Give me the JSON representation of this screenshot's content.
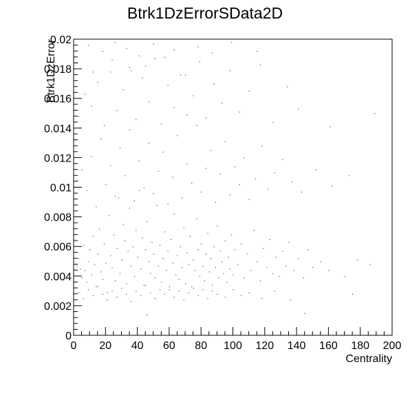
{
  "chart_data": {
    "type": "scatter",
    "title": "Btrk1DzErrorSData2D",
    "xlabel": "Centrality",
    "ylabel": "Btrk1DzError",
    "xlim": [
      0,
      200
    ],
    "ylim": [
      0,
      0.02
    ],
    "x_ticks": [
      "0",
      "20",
      "40",
      "60",
      "80",
      "100",
      "120",
      "140",
      "160",
      "180",
      "200"
    ],
    "y_ticks": [
      "0",
      "0.002",
      "0.004",
      "0.006",
      "0.008",
      "0.01",
      "0.012",
      "0.014",
      "0.016",
      "0.018",
      "0.02"
    ],
    "grid": false,
    "legend": "none",
    "colors": {
      "marker": "#000000",
      "frame": "#000000",
      "background": "#ffffff"
    },
    "series": [
      {
        "points": [
          [
            2,
            0.0047
          ],
          [
            3,
            0.0052
          ],
          [
            4,
            0.0045
          ],
          [
            5,
            0.0039
          ],
          [
            6,
            0.0061
          ],
          [
            7,
            0.0044
          ],
          [
            8,
            0.0036
          ],
          [
            9,
            0.005
          ],
          [
            10,
            0.0058
          ],
          [
            11,
            0.0041
          ],
          [
            12,
            0.0067
          ],
          [
            13,
            0.0048
          ],
          [
            14,
            0.0033
          ],
          [
            15,
            0.0055
          ],
          [
            16,
            0.0072
          ],
          [
            17,
            0.0043
          ],
          [
            18,
            0.0038
          ],
          [
            19,
            0.0062
          ],
          [
            20,
            0.0049
          ],
          [
            21,
            0.0029
          ],
          [
            22,
            0.0081
          ],
          [
            23,
            0.0054
          ],
          [
            24,
            0.0046
          ],
          [
            25,
            0.0068
          ],
          [
            26,
            0.0037
          ],
          [
            27,
            0.0059
          ],
          [
            28,
            0.0093
          ],
          [
            29,
            0.0042
          ],
          [
            30,
            0.0051
          ],
          [
            31,
            0.0075
          ],
          [
            32,
            0.0064
          ],
          [
            33,
            0.0035
          ],
          [
            34,
            0.0057
          ],
          [
            35,
            0.0086
          ],
          [
            36,
            0.0047
          ],
          [
            37,
            0.006
          ],
          [
            38,
            0.004
          ],
          [
            39,
            0.0071
          ],
          [
            40,
            0.0053
          ],
          [
            41,
            0.0098
          ],
          [
            42,
            0.0045
          ],
          [
            43,
            0.0066
          ],
          [
            44,
            0.0034
          ],
          [
            45,
            0.0058
          ],
          [
            46,
            0.0077
          ],
          [
            47,
            0.005
          ],
          [
            48,
            0.0042
          ],
          [
            49,
            0.0063
          ],
          [
            50,
            0.0055
          ],
          [
            51,
            0.0039
          ],
          [
            52,
            0.0088
          ],
          [
            53,
            0.0047
          ],
          [
            54,
            0.0061
          ],
          [
            55,
            0.0036
          ],
          [
            56,
            0.0052
          ],
          [
            57,
            0.007
          ],
          [
            58,
            0.0044
          ],
          [
            59,
            0.0057
          ],
          [
            60,
            0.0031
          ],
          [
            61,
            0.0065
          ],
          [
            62,
            0.0049
          ],
          [
            63,
            0.0082
          ],
          [
            64,
            0.0041
          ],
          [
            65,
            0.0054
          ],
          [
            66,
            0.0038
          ],
          [
            67,
            0.006
          ],
          [
            68,
            0.0046
          ],
          [
            69,
            0.0073
          ],
          [
            70,
            0.0035
          ],
          [
            71,
            0.0056
          ],
          [
            72,
            0.0048
          ],
          [
            73,
            0.0067
          ],
          [
            74,
            0.0033
          ],
          [
            75,
            0.0051
          ],
          [
            76,
            0.0044
          ],
          [
            77,
            0.0079
          ],
          [
            78,
            0.0058
          ],
          [
            79,
            0.004
          ],
          [
            80,
            0.0062
          ],
          [
            81,
            0.0047
          ],
          [
            82,
            0.0037
          ],
          [
            83,
            0.0055
          ],
          [
            84,
            0.0069
          ],
          [
            85,
            0.0043
          ],
          [
            86,
            0.0052
          ],
          [
            87,
            0.0034
          ],
          [
            88,
            0.006
          ],
          [
            89,
            0.0046
          ],
          [
            90,
            0.0074
          ],
          [
            91,
            0.0039
          ],
          [
            92,
            0.0057
          ],
          [
            93,
            0.005
          ],
          [
            94,
            0.0042
          ],
          [
            95,
            0.0064
          ],
          [
            96,
            0.0036
          ],
          [
            97,
            0.0053
          ],
          [
            98,
            0.0045
          ],
          [
            99,
            0.0068
          ],
          [
            100,
            0.0041
          ],
          [
            101,
            0.0058
          ],
          [
            103,
            0.0048
          ],
          [
            105,
            0.0062
          ],
          [
            107,
            0.0039
          ],
          [
            109,
            0.0055
          ],
          [
            111,
            0.0044
          ],
          [
            113,
            0.0071
          ],
          [
            115,
            0.005
          ],
          [
            117,
            0.0037
          ],
          [
            119,
            0.0059
          ],
          [
            121,
            0.0046
          ],
          [
            123,
            0.0065
          ],
          [
            125,
            0.0042
          ],
          [
            127,
            0.0053
          ],
          [
            129,
            0.004
          ],
          [
            131,
            0.0057
          ],
          [
            133,
            0.0047
          ],
          [
            135,
            0.0063
          ],
          [
            138,
            0.0044
          ],
          [
            141,
            0.0052
          ],
          [
            144,
            0.0039
          ],
          [
            147,
            0.0058
          ],
          [
            150,
            0.0046
          ],
          [
            155,
            0.005
          ],
          [
            160,
            0.0044
          ],
          [
            170,
            0.004
          ],
          [
            178,
            0.0051
          ],
          [
            186,
            0.0048
          ],
          [
            3,
            0.0029
          ],
          [
            6,
            0.0025
          ],
          [
            9,
            0.0031
          ],
          [
            12,
            0.0027
          ],
          [
            15,
            0.0033
          ],
          [
            18,
            0.0028
          ],
          [
            21,
            0.0024
          ],
          [
            24,
            0.003
          ],
          [
            27,
            0.0026
          ],
          [
            30,
            0.0032
          ],
          [
            33,
            0.0028
          ],
          [
            36,
            0.0023
          ],
          [
            39,
            0.003
          ],
          [
            42,
            0.0027
          ],
          [
            45,
            0.0034
          ],
          [
            48,
            0.0029
          ],
          [
            51,
            0.0025
          ],
          [
            54,
            0.0031
          ],
          [
            57,
            0.0028
          ],
          [
            60,
            0.0033
          ],
          [
            63,
            0.0026
          ],
          [
            66,
            0.003
          ],
          [
            69,
            0.0024
          ],
          [
            72,
            0.0029
          ],
          [
            75,
            0.0032
          ],
          [
            78,
            0.0027
          ],
          [
            81,
            0.0031
          ],
          [
            84,
            0.0025
          ],
          [
            87,
            0.003
          ],
          [
            90,
            0.0028
          ],
          [
            95,
            0.0026
          ],
          [
            100,
            0.0031
          ],
          [
            105,
            0.0027
          ],
          [
            110,
            0.0029
          ],
          [
            118,
            0.0025
          ],
          [
            126,
            0.003
          ],
          [
            136,
            0.0024
          ],
          [
            145,
            0.0015
          ],
          [
            175,
            0.0028
          ],
          [
            46,
            0.0014
          ],
          [
            2,
            0.0105
          ],
          [
            5,
            0.0112
          ],
          [
            8,
            0.0098
          ],
          [
            11,
            0.0121
          ],
          [
            14,
            0.0087
          ],
          [
            17,
            0.0133
          ],
          [
            20,
            0.0102
          ],
          [
            23,
            0.0115
          ],
          [
            26,
            0.0094
          ],
          [
            29,
            0.0127
          ],
          [
            32,
            0.0108
          ],
          [
            35,
            0.0139
          ],
          [
            38,
            0.0091
          ],
          [
            41,
            0.0118
          ],
          [
            44,
            0.01
          ],
          [
            47,
            0.013
          ],
          [
            50,
            0.0096
          ],
          [
            53,
            0.0111
          ],
          [
            56,
            0.0124
          ],
          [
            59,
            0.0089
          ],
          [
            62,
            0.0107
          ],
          [
            65,
            0.0135
          ],
          [
            68,
            0.0093
          ],
          [
            71,
            0.0116
          ],
          [
            74,
            0.0103
          ],
          [
            77,
            0.0142
          ],
          [
            80,
            0.0097
          ],
          [
            83,
            0.0113
          ],
          [
            86,
            0.0125
          ],
          [
            89,
            0.009
          ],
          [
            92,
            0.0109
          ],
          [
            95,
            0.0131
          ],
          [
            98,
            0.0095
          ],
          [
            101,
            0.0114
          ],
          [
            104,
            0.0102
          ],
          [
            107,
            0.012
          ],
          [
            110,
            0.0092
          ],
          [
            114,
            0.0106
          ],
          [
            118,
            0.0128
          ],
          [
            122,
            0.0099
          ],
          [
            126,
            0.011
          ],
          [
            131,
            0.0119
          ],
          [
            137,
            0.0104
          ],
          [
            143,
            0.0097
          ],
          [
            152,
            0.0112
          ],
          [
            162,
            0.0101
          ],
          [
            173,
            0.0108
          ],
          [
            3,
            0.0148
          ],
          [
            7,
            0.0163
          ],
          [
            11,
            0.0155
          ],
          [
            15,
            0.0171
          ],
          [
            19,
            0.0142
          ],
          [
            23,
            0.0178
          ],
          [
            27,
            0.0152
          ],
          [
            31,
            0.0166
          ],
          [
            35,
            0.0181
          ],
          [
            39,
            0.0146
          ],
          [
            43,
            0.0174
          ],
          [
            47,
            0.0158
          ],
          [
            51,
            0.0187
          ],
          [
            55,
            0.0143
          ],
          [
            59,
            0.0169
          ],
          [
            63,
            0.0154
          ],
          [
            67,
            0.0176
          ],
          [
            71,
            0.0149
          ],
          [
            75,
            0.0162
          ],
          [
            79,
            0.0185
          ],
          [
            83,
            0.0147
          ],
          [
            88,
            0.017
          ],
          [
            93,
            0.0157
          ],
          [
            98,
            0.0179
          ],
          [
            104,
            0.0151
          ],
          [
            110,
            0.0165
          ],
          [
            117,
            0.0183
          ],
          [
            125,
            0.0144
          ],
          [
            134,
            0.0168
          ],
          [
            141,
            0.0153
          ],
          [
            161,
            0.0141
          ],
          [
            189,
            0.015
          ],
          [
            9,
            0.0196
          ],
          [
            18,
            0.0192
          ],
          [
            26,
            0.0198
          ],
          [
            33,
            0.0194
          ],
          [
            41,
            0.0189
          ],
          [
            50,
            0.0197
          ],
          [
            63,
            0.0193
          ],
          [
            78,
            0.0195
          ],
          [
            87,
            0.0191
          ],
          [
            99,
            0.0198
          ],
          [
            115,
            0.0192
          ],
          [
            2,
            0.0184
          ],
          [
            12,
            0.0178
          ],
          [
            24,
            0.0186
          ],
          [
            36,
            0.0179
          ],
          [
            45,
            0.0182
          ],
          [
            57,
            0.0188
          ],
          [
            70,
            0.0176
          ]
        ]
      }
    ]
  }
}
